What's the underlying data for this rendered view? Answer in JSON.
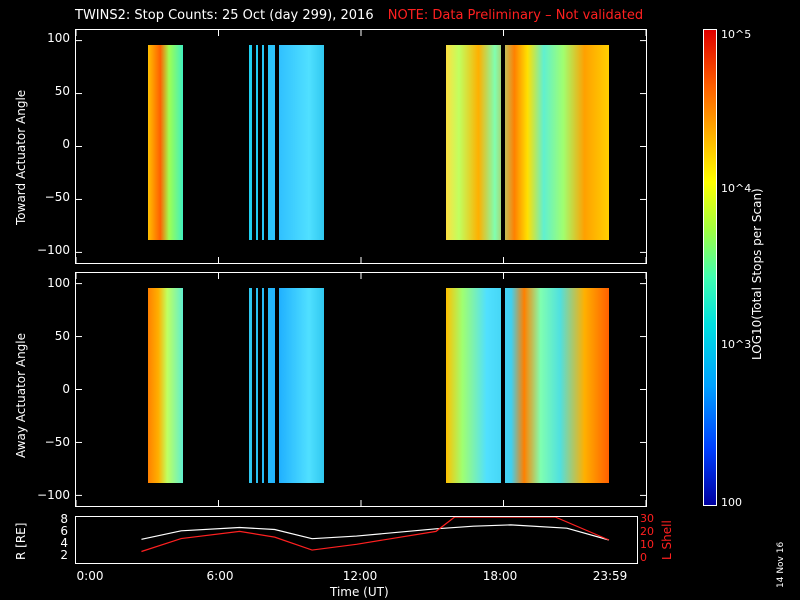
{
  "title": "TWINS2: Stop Counts: 25 Oct (day 299), 2016",
  "note": "NOTE: Data Preliminary – Not validated",
  "date_stamp": "14 Nov 16",
  "colorbar": {
    "title": "LOG10(Total Stops per Scan)",
    "tick_labels": [
      "10^5",
      "10^4",
      "10^3",
      "100"
    ],
    "colors": [
      "#0000a0",
      "#00a0ff",
      "#40ffb0",
      "#ffff00",
      "#ff6000",
      "#e00000"
    ]
  },
  "chart_data": [
    {
      "type": "heatmap",
      "title": "TWINS2: Stop Counts: 25 Oct (day 299), 2016",
      "ylabel": "Toward Actuator Angle",
      "ylim": [
        -110,
        110
      ],
      "yticks": [
        "100",
        "50",
        "0",
        "−50",
        "−100"
      ],
      "xlim_hours": [
        0,
        24
      ],
      "data_segments_hours": [
        [
          2.8,
          4.0
        ],
        [
          7.1,
          10.1
        ],
        [
          15.4,
          22.8
        ]
      ],
      "data_angle_range": [
        -88,
        90
      ]
    },
    {
      "type": "heatmap",
      "ylabel": "Away Actuator Angle",
      "ylim": [
        -110,
        110
      ],
      "yticks": [
        "100",
        "50",
        "0",
        "−50",
        "−100"
      ],
      "xlim_hours": [
        0,
        24
      ],
      "data_segments_hours": [
        [
          2.8,
          4.0
        ],
        [
          7.1,
          10.1
        ],
        [
          15.4,
          22.8
        ]
      ],
      "data_angle_range": [
        -88,
        90
      ]
    },
    {
      "type": "line",
      "xlabel": "Time (UT)",
      "x_tick_labels": [
        "0:00",
        "6:00",
        "12:00",
        "18:00",
        "23:59"
      ],
      "left_axis": {
        "label": "R [RE]",
        "ticks": [
          "8",
          "6",
          "4",
          "2"
        ],
        "ylim": [
          1.5,
          8.5
        ]
      },
      "right_axis": {
        "label": "L Shell",
        "ticks": [
          "30",
          "20",
          "10",
          "0"
        ],
        "ylim": [
          0,
          32
        ]
      },
      "series": [
        {
          "name": "R [RE]",
          "color": "#ffffff",
          "x": [
            2.8,
            4.5,
            7.0,
            8.5,
            10.1,
            12,
            15.4,
            17.0,
            18.6,
            21,
            22.8
          ],
          "y": [
            5.1,
            6.4,
            6.9,
            6.6,
            5.2,
            5.6,
            6.7,
            7.1,
            7.3,
            6.8,
            5.0
          ]
        },
        {
          "name": "L Shell",
          "color": "#ff2020",
          "x": [
            2.8,
            4.5,
            7.0,
            8.5,
            10.1,
            12,
            15.4,
            16.2,
            20.5,
            22.8
          ],
          "y": [
            8,
            17,
            22,
            18,
            9,
            13,
            22,
            33,
            33,
            16
          ]
        }
      ]
    }
  ]
}
